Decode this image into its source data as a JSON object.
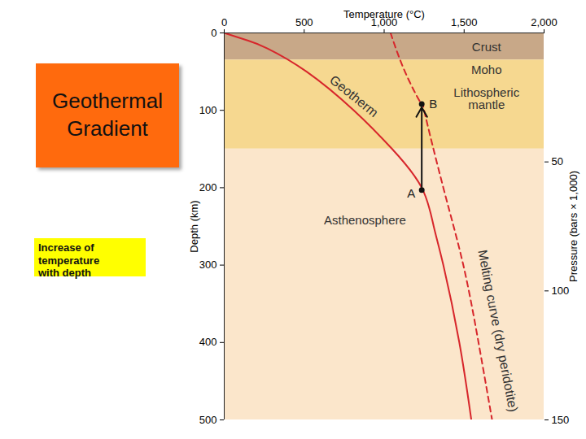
{
  "chart_data": {
    "type": "line",
    "title": "Geothermal Gradient",
    "subtitle": "Increase of temperature with depth",
    "x_label": "Temperature (°C)",
    "y_label": "Depth (km)",
    "y2_label": "Pressure (bars × 1,000)",
    "xlim": [
      0,
      2000
    ],
    "xticks": [
      0,
      500,
      {
        "value": 1000,
        "label": "1,000"
      },
      {
        "value": 1500,
        "label": "1,500"
      },
      {
        "value": 2000,
        "label": "2,000"
      }
    ],
    "ylim": [
      0,
      500
    ],
    "yticks": [
      0,
      100,
      200,
      300,
      400,
      500
    ],
    "y2lim": [
      0,
      150
    ],
    "y2ticks": [
      50,
      100,
      150
    ],
    "grid": false,
    "bands": [
      {
        "from": 0,
        "to": 35,
        "color": "#c8a888"
      },
      {
        "from": 35,
        "to": 150,
        "color": "#f6d890"
      },
      {
        "from": 150,
        "to": 500,
        "color": "#fbe6cb"
      }
    ],
    "series": [
      {
        "name": "Geotherm",
        "color": "#d7262b",
        "line_style": "solid",
        "x": [
          0,
          150,
          270,
          515,
          810,
          1050,
          1235,
          1310,
          1370,
          1470,
          1545
        ],
        "values": [
          0,
          10,
          20,
          50,
          100,
          150,
          200,
          250,
          300,
          400,
          500
        ],
        "label_position": [
          810,
          82
        ]
      },
      {
        "name": "Melting curve (dry peridotite)",
        "color": "#d7262b",
        "line_style": "dashed",
        "x": [
          1040,
          1130,
          1235,
          1250,
          1370,
          1495,
          1590,
          1675
        ],
        "values": [
          0,
          50,
          92,
          100,
          200,
          300,
          400,
          500
        ],
        "label_position": [
          1710,
          385
        ]
      }
    ],
    "points": [
      {
        "label": "A",
        "x": 1235,
        "y": 203
      },
      {
        "label": "B",
        "x": 1235,
        "y": 92
      }
    ],
    "annotations": [
      {
        "text": "Crust",
        "x": 1640,
        "y": 18
      },
      {
        "text": "Moho",
        "x": 1640,
        "y": 48
      },
      {
        "text": "Lithospheric\nmantle",
        "x": 1640,
        "y": 85
      },
      {
        "text": "Asthenosphere",
        "x": 880,
        "y": 242
      }
    ]
  }
}
